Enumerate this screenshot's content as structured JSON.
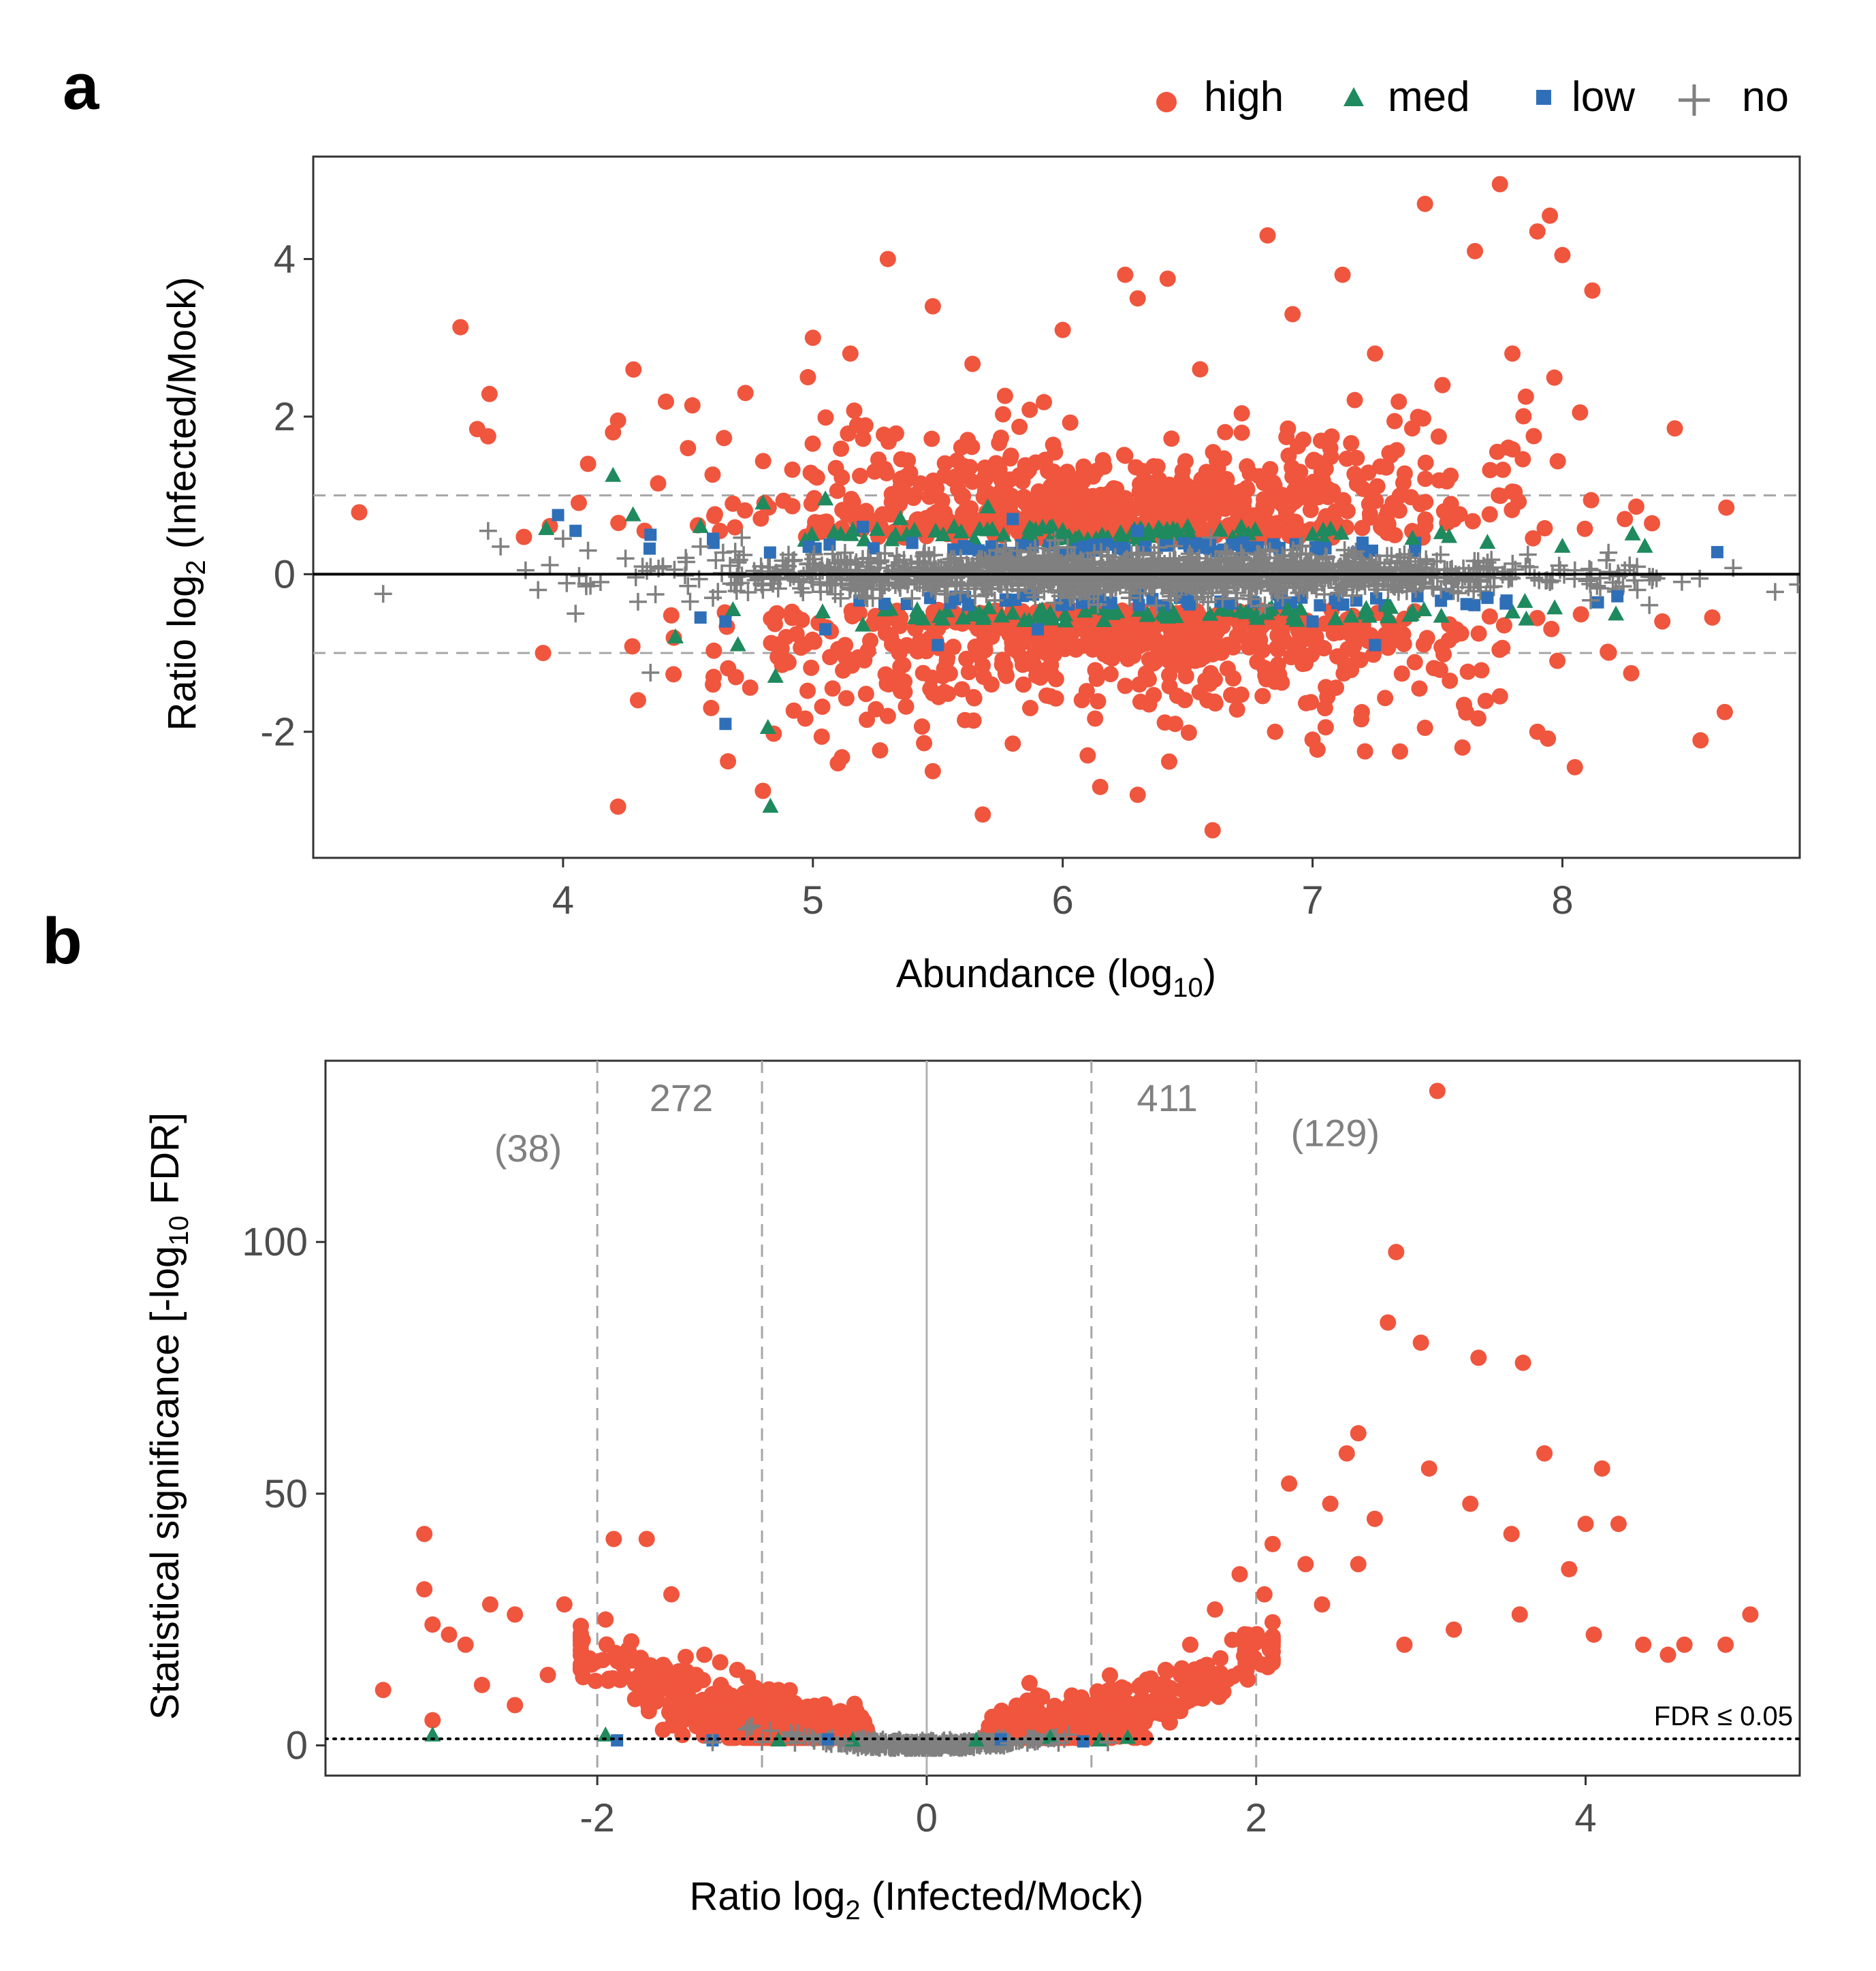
{
  "panels": {
    "a": {
      "letter": "a"
    },
    "b": {
      "letter": "b"
    }
  },
  "legend": {
    "items": [
      {
        "key": "high",
        "label": "high",
        "color": "#f0553d",
        "marker": "circle-icon"
      },
      {
        "key": "med",
        "label": "med",
        "color": "#1f8a5e",
        "marker": "triangle-icon"
      },
      {
        "key": "low",
        "label": "low",
        "color": "#2f6fb8",
        "marker": "square-icon"
      },
      {
        "key": "no",
        "label": "no",
        "color": "#808080",
        "marker": "plus-icon"
      }
    ]
  },
  "chart_data": [
    {
      "id": "a",
      "type": "scatter",
      "title": "",
      "xlabel": {
        "main": "Abundance (log",
        "sub": "10",
        "end": ")"
      },
      "ylabel": {
        "main": "Ratio log",
        "sub": "2",
        "end": " (Infected/Mock)"
      },
      "xlim": [
        3.0,
        8.95
      ],
      "ylim": [
        -3.6,
        5.3
      ],
      "xticks": [
        4,
        5,
        6,
        7,
        8
      ],
      "xtick_labels": [
        "4",
        "5",
        "6",
        "7",
        "8"
      ],
      "yticks": [
        -2,
        0,
        2,
        4
      ],
      "ytick_labels": [
        "-2",
        "0",
        "2",
        "4"
      ],
      "reference_lines": {
        "solid": [
          0
        ],
        "dashed": [
          -1,
          1
        ]
      },
      "grid": false,
      "series": [
        {
          "name": "high",
          "points": [
            [
              5.3,
              4.0
            ],
            [
              6.0,
              3.1
            ],
            [
              6.82,
              4.3
            ],
            [
              7.45,
              4.7
            ],
            [
              7.75,
              4.95
            ],
            [
              7.95,
              4.55
            ],
            [
              8.0,
              4.05
            ],
            [
              7.65,
              4.1
            ],
            [
              7.9,
              4.35
            ],
            [
              8.12,
              3.6
            ],
            [
              7.12,
              3.8
            ],
            [
              6.42,
              3.75
            ],
            [
              6.25,
              3.8
            ],
            [
              5.48,
              3.4
            ],
            [
              5.0,
              3.0
            ],
            [
              4.73,
              2.3
            ],
            [
              4.2,
              1.8
            ],
            [
              3.7,
              1.75
            ],
            [
              4.1,
              1.4
            ],
            [
              4.22,
              1.95
            ],
            [
              4.5,
              1.6
            ],
            [
              4.98,
              2.5
            ],
            [
              5.15,
              2.8
            ],
            [
              6.3,
              3.5
            ],
            [
              6.55,
              2.6
            ],
            [
              6.92,
              3.3
            ],
            [
              7.25,
              2.8
            ],
            [
              7.52,
              2.4
            ],
            [
              7.8,
              2.8
            ],
            [
              8.45,
              1.85
            ],
            [
              8.25,
              0.7
            ],
            [
              8.6,
              -0.55
            ],
            [
              8.4,
              -0.6
            ],
            [
              8.65,
              -1.75
            ],
            [
              7.9,
              -2.0
            ],
            [
              8.05,
              -2.45
            ],
            [
              7.45,
              -1.95
            ],
            [
              7.75,
              -1.55
            ],
            [
              7.6,
              -2.2
            ],
            [
              6.85,
              -2.0
            ],
            [
              6.6,
              -3.25
            ],
            [
              6.3,
              -2.8
            ],
            [
              6.15,
              -2.7
            ],
            [
              5.68,
              -3.05
            ],
            [
              5.48,
              -2.5
            ],
            [
              4.8,
              -2.75
            ],
            [
              4.22,
              -2.95
            ],
            [
              5.1,
              -2.4
            ],
            [
              5.8,
              -2.15
            ],
            [
              7.0,
              -2.1
            ],
            [
              3.92,
              -1.0
            ],
            [
              4.3,
              -1.6
            ],
            [
              4.6,
              -1.4
            ],
            [
              5.3,
              -1.8
            ],
            [
              6.1,
              -2.3
            ],
            [
              7.35,
              -2.25
            ],
            [
              7.98,
              -1.1
            ],
            [
              7.05,
              -1.7
            ],
            [
              6.45,
              -1.9
            ],
            [
              5.95,
              -1.55
            ]
          ]
        },
        {
          "name": "med",
          "points": [
            [
              4.2,
              1.25
            ],
            [
              4.28,
              0.75
            ],
            [
              4.55,
              0.6
            ],
            [
              4.8,
              0.9
            ],
            [
              5.05,
              0.95
            ],
            [
              5.35,
              0.7
            ],
            [
              5.7,
              0.85
            ],
            [
              6.0,
              0.55
            ],
            [
              6.5,
              0.6
            ],
            [
              7.0,
              0.5
            ],
            [
              7.4,
              0.45
            ],
            [
              7.7,
              0.4
            ],
            [
              8.0,
              0.35
            ],
            [
              8.33,
              0.35
            ],
            [
              4.85,
              -1.3
            ],
            [
              4.82,
              -1.95
            ],
            [
              4.83,
              -2.95
            ],
            [
              4.7,
              -0.9
            ],
            [
              5.2,
              -0.65
            ],
            [
              5.8,
              -0.5
            ],
            [
              6.4,
              -0.5
            ],
            [
              6.9,
              -0.45
            ],
            [
              7.3,
              -0.4
            ],
            [
              7.85,
              -0.35
            ],
            [
              4.45,
              -0.8
            ]
          ]
        },
        {
          "name": "low",
          "points": [
            [
              3.98,
              0.75
            ],
            [
              4.05,
              0.55
            ],
            [
              4.35,
              0.5
            ],
            [
              4.6,
              0.45
            ],
            [
              5.2,
              0.6
            ],
            [
              5.8,
              0.7
            ],
            [
              6.3,
              0.55
            ],
            [
              7.2,
              0.4
            ],
            [
              8.62,
              0.28
            ],
            [
              4.55,
              -0.55
            ],
            [
              4.65,
              -0.6
            ],
            [
              4.65,
              -1.9
            ],
            [
              5.5,
              -0.9
            ],
            [
              5.9,
              -0.7
            ],
            [
              6.5,
              -0.35
            ],
            [
              7.0,
              -0.6
            ],
            [
              7.25,
              -0.9
            ],
            [
              7.7,
              -0.3
            ],
            [
              8.22,
              -0.28
            ],
            [
              5.05,
              -0.7
            ]
          ]
        },
        {
          "name": "no",
          "points": [
            [
              3.28,
              -0.25
            ],
            [
              3.7,
              0.55
            ],
            [
              3.75,
              0.35
            ],
            [
              3.85,
              0.05
            ],
            [
              3.9,
              -0.2
            ],
            [
              4.0,
              0.45
            ],
            [
              4.05,
              -0.5
            ],
            [
              4.1,
              0.3
            ],
            [
              4.15,
              -0.1
            ],
            [
              4.25,
              0.2
            ],
            [
              4.3,
              -0.35
            ],
            [
              4.35,
              -1.25
            ],
            [
              4.4,
              0.1
            ],
            [
              4.5,
              -0.15
            ],
            [
              4.55,
              0.35
            ],
            [
              4.6,
              -0.3
            ],
            [
              4.7,
              0.15
            ],
            [
              4.8,
              -0.2
            ],
            [
              4.9,
              0.1
            ],
            [
              5.0,
              -0.1
            ],
            [
              8.05,
              0.05
            ],
            [
              8.15,
              -0.05
            ],
            [
              8.25,
              0.05
            ],
            [
              8.3,
              -0.2
            ],
            [
              7.95,
              -0.1
            ]
          ]
        }
      ]
    },
    {
      "id": "b",
      "type": "scatter",
      "title": "",
      "xlabel": {
        "main": "Ratio log",
        "sub": "2",
        "end": " (Infected/Mock)"
      },
      "ylabel": {
        "main": "Statistical significance  [-log",
        "sub": "10",
        "end": " FDR]"
      },
      "xlim": [
        -3.65,
        5.3
      ],
      "ylim": [
        -6,
        136
      ],
      "xticks": [
        -2,
        0,
        2,
        4
      ],
      "xtick_labels": [
        "-2",
        "0",
        "2",
        "4"
      ],
      "yticks": [
        0,
        50,
        100
      ],
      "ytick_labels": [
        "0",
        "50",
        "100"
      ],
      "reference_lines": {
        "solid_x": [
          0
        ],
        "dashed_x": [
          -2,
          -1,
          1,
          2
        ],
        "dotted_y": [
          1.3
        ]
      },
      "threshold_label": "FDR ≤ 0.05",
      "count_labels": [
        {
          "text": "(38)",
          "x": -2.42,
          "y": 116
        },
        {
          "text": "272",
          "x": -1.49,
          "y": 126
        },
        {
          "text": "411",
          "x": 1.46,
          "y": 126
        },
        {
          "text": "(129)",
          "x": 2.48,
          "y": 119
        }
      ],
      "grid": false,
      "series": [
        {
          "name": "high",
          "points": [
            [
              3.1,
              130
            ],
            [
              2.85,
              98
            ],
            [
              2.8,
              84
            ],
            [
              3.0,
              80
            ],
            [
              3.35,
              77
            ],
            [
              3.62,
              76
            ],
            [
              2.62,
              62
            ],
            [
              2.55,
              58
            ],
            [
              3.05,
              55
            ],
            [
              3.75,
              58
            ],
            [
              4.1,
              55
            ],
            [
              4.2,
              44
            ],
            [
              4.0,
              44
            ],
            [
              2.2,
              52
            ],
            [
              2.45,
              48
            ],
            [
              2.72,
              45
            ],
            [
              3.3,
              48
            ],
            [
              3.55,
              42
            ],
            [
              3.9,
              35
            ],
            [
              4.05,
              22
            ],
            [
              4.35,
              20
            ],
            [
              4.6,
              20
            ],
            [
              4.85,
              20
            ],
            [
              5.0,
              26
            ],
            [
              4.5,
              18
            ],
            [
              3.6,
              26
            ],
            [
              3.2,
              23
            ],
            [
              2.9,
              20
            ],
            [
              2.62,
              36
            ],
            [
              2.4,
              28
            ],
            [
              2.1,
              40
            ],
            [
              2.3,
              36
            ],
            [
              2.05,
              30
            ],
            [
              1.9,
              34
            ],
            [
              1.75,
              27
            ],
            [
              1.6,
              20
            ],
            [
              1.45,
              15
            ],
            [
              1.3,
              12
            ],
            [
              1.15,
              10
            ],
            [
              1.0,
              8
            ],
            [
              0.85,
              6
            ],
            [
              0.7,
              4
            ],
            [
              0.55,
              3
            ],
            [
              1.95,
              22
            ],
            [
              1.7,
              16
            ],
            [
              -3.05,
              42
            ],
            [
              -3.05,
              31
            ],
            [
              -3.0,
              24
            ],
            [
              -2.9,
              22
            ],
            [
              -2.8,
              20
            ],
            [
              -2.65,
              28
            ],
            [
              -2.5,
              26
            ],
            [
              -3.3,
              11
            ],
            [
              -2.2,
              28
            ],
            [
              -1.9,
              41
            ],
            [
              -1.7,
              41
            ],
            [
              -1.55,
              30
            ],
            [
              -1.95,
              25
            ],
            [
              -2.1,
              20
            ],
            [
              -2.3,
              14
            ],
            [
              -1.8,
              18
            ],
            [
              -1.6,
              16
            ],
            [
              -1.4,
              14
            ],
            [
              -1.25,
              12
            ],
            [
              -1.1,
              10
            ],
            [
              -0.95,
              8
            ],
            [
              -0.8,
              6
            ],
            [
              -0.65,
              4
            ],
            [
              -0.5,
              3
            ],
            [
              -2.5,
              8
            ],
            [
              -2.7,
              12
            ],
            [
              -3.0,
              5
            ],
            [
              -1.35,
              18
            ],
            [
              -1.15,
              15
            ],
            [
              -0.9,
              11
            ]
          ]
        },
        {
          "name": "med",
          "points": [
            [
              -3.0,
              2
            ],
            [
              -1.95,
              2
            ],
            [
              -0.9,
              1
            ],
            [
              -0.45,
              1
            ],
            [
              0.3,
              1
            ],
            [
              0.75,
              1.5
            ],
            [
              1.05,
              1
            ],
            [
              1.22,
              1.5
            ]
          ]
        },
        {
          "name": "low",
          "points": [
            [
              -1.88,
              1
            ],
            [
              -1.3,
              1
            ],
            [
              -0.6,
              1.2
            ],
            [
              0.45,
              1.2
            ],
            [
              0.95,
              0.8
            ]
          ]
        },
        {
          "name": "no",
          "points": [
            [
              -1.3,
              0.6
            ],
            [
              -0.8,
              0.5
            ],
            [
              -0.5,
              0.4
            ],
            [
              -0.2,
              0.2
            ],
            [
              0.0,
              0.1
            ],
            [
              0.2,
              0.2
            ],
            [
              0.5,
              0.4
            ],
            [
              0.8,
              0.5
            ],
            [
              1.1,
              0.6
            ],
            [
              -1.0,
              0.7
            ]
          ]
        }
      ]
    }
  ]
}
